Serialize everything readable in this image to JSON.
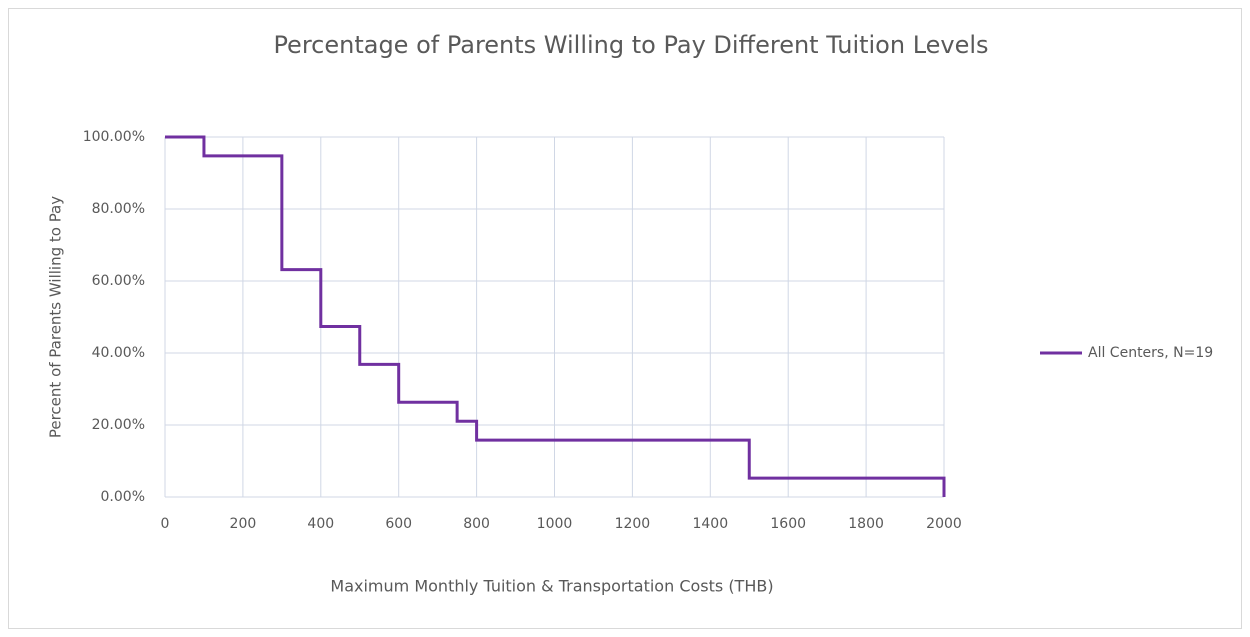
{
  "chart_data": {
    "type": "step-line",
    "title": "Percentage of Parents Willing to Pay Different Tuition Levels",
    "xlabel": "Maximum Monthly Tuition & Transportation Costs (THB)",
    "ylabel": "Percent of Parents Willing to Pay",
    "step": "post",
    "x": [
      0,
      100,
      300,
      400,
      500,
      600,
      750,
      800,
      1500,
      2000
    ],
    "series": [
      {
        "name": "All Centers, N=19",
        "color": "#7030a0",
        "values": [
          100,
          94.74,
          63.16,
          47.37,
          36.84,
          26.32,
          21.05,
          15.79,
          5.26,
          0
        ]
      }
    ],
    "xlim": [
      0,
      2000
    ],
    "xticks": [
      0,
      200,
      400,
      600,
      800,
      1000,
      1200,
      1400,
      1600,
      1800,
      2000
    ],
    "ylim": [
      0,
      100
    ],
    "yticks": [
      {
        "value": 0,
        "label": "0.00%"
      },
      {
        "value": 20,
        "label": "20.00%"
      },
      {
        "value": 40,
        "label": "40.00%"
      },
      {
        "value": 60,
        "label": "60.00%"
      },
      {
        "value": 80,
        "label": "80.00%"
      },
      {
        "value": 100,
        "label": "100.00%"
      }
    ],
    "grid": true,
    "legend": "right"
  }
}
